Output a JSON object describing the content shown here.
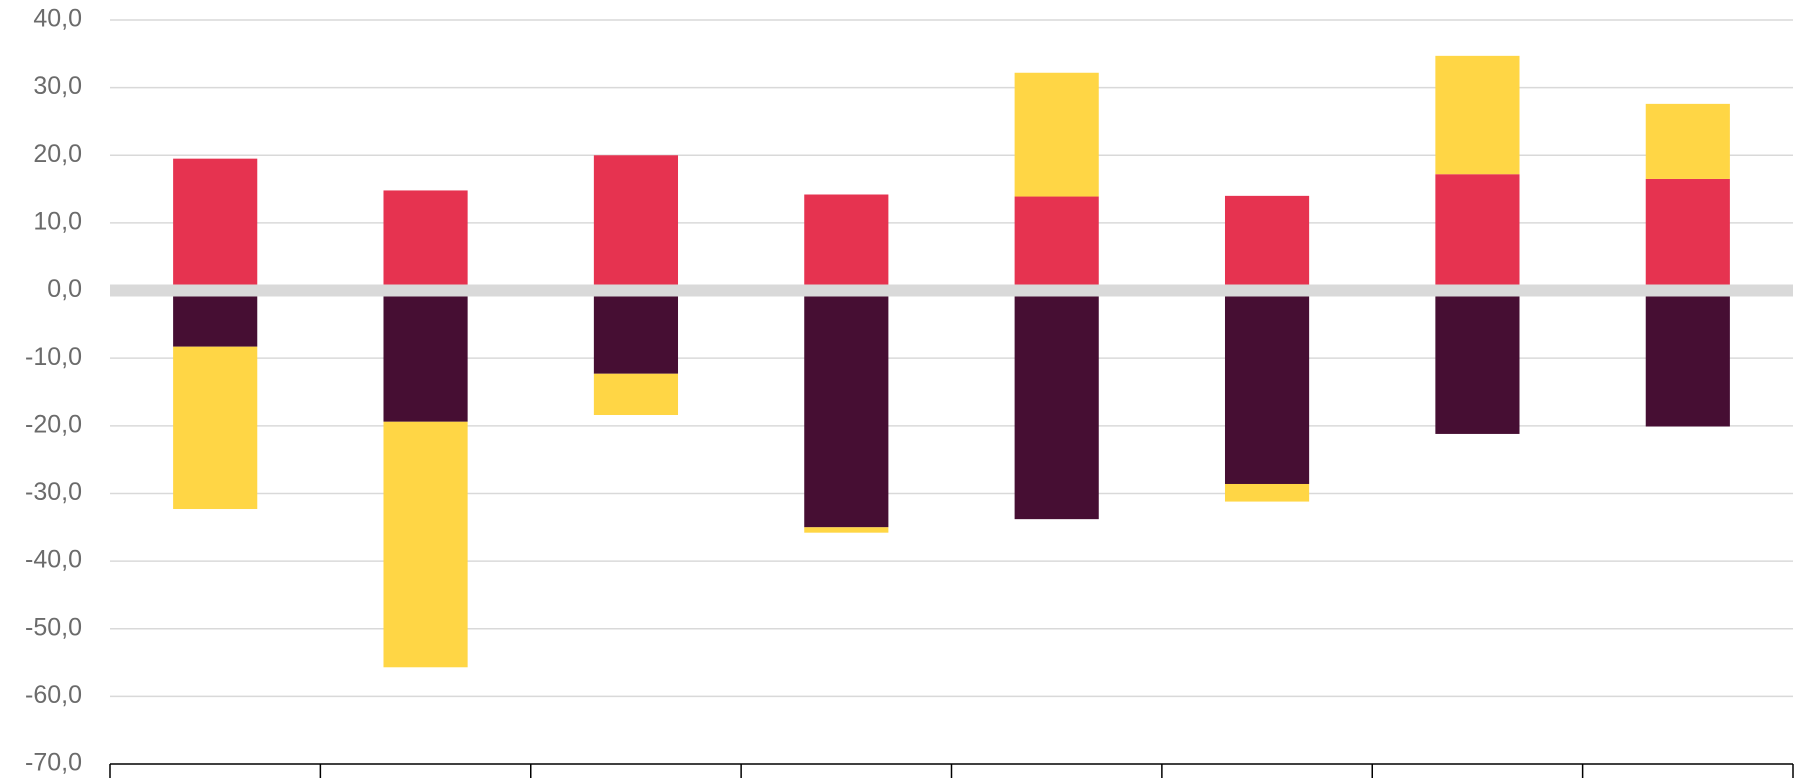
{
  "chart_data": {
    "type": "bar",
    "stacked": true,
    "title": "",
    "xlabel": "",
    "ylabel": "",
    "ylim": [
      -70,
      40
    ],
    "y_ticks": [
      40,
      30,
      20,
      10,
      0,
      -10,
      -20,
      -30,
      -40,
      -50,
      -60,
      -70
    ],
    "y_tick_labels": [
      "40,0",
      "30,0",
      "20,0",
      "10,0",
      "0,0",
      "-10,0",
      "-20,0",
      "-30,0",
      "-40,0",
      "-50,0",
      "-60,0",
      "-70,0"
    ],
    "grid": true,
    "legend": "none",
    "categories": [
      "",
      "",
      "",
      "",
      "",
      "",
      "",
      ""
    ],
    "series": [
      {
        "color": "#E63350",
        "values": [
          19.5,
          14.8,
          20.0,
          14.2,
          13.9,
          14.0,
          17.2,
          16.5
        ]
      },
      {
        "color": "#460E33",
        "values": [
          -8.3,
          -19.4,
          -12.3,
          -35.0,
          -33.8,
          -28.6,
          -21.2,
          -20.1
        ]
      },
      {
        "color": "#FFD645",
        "values": [
          -24.0,
          -36.3,
          -6.1,
          -0.8,
          18.3,
          -2.6,
          17.5,
          11.1
        ]
      }
    ]
  }
}
